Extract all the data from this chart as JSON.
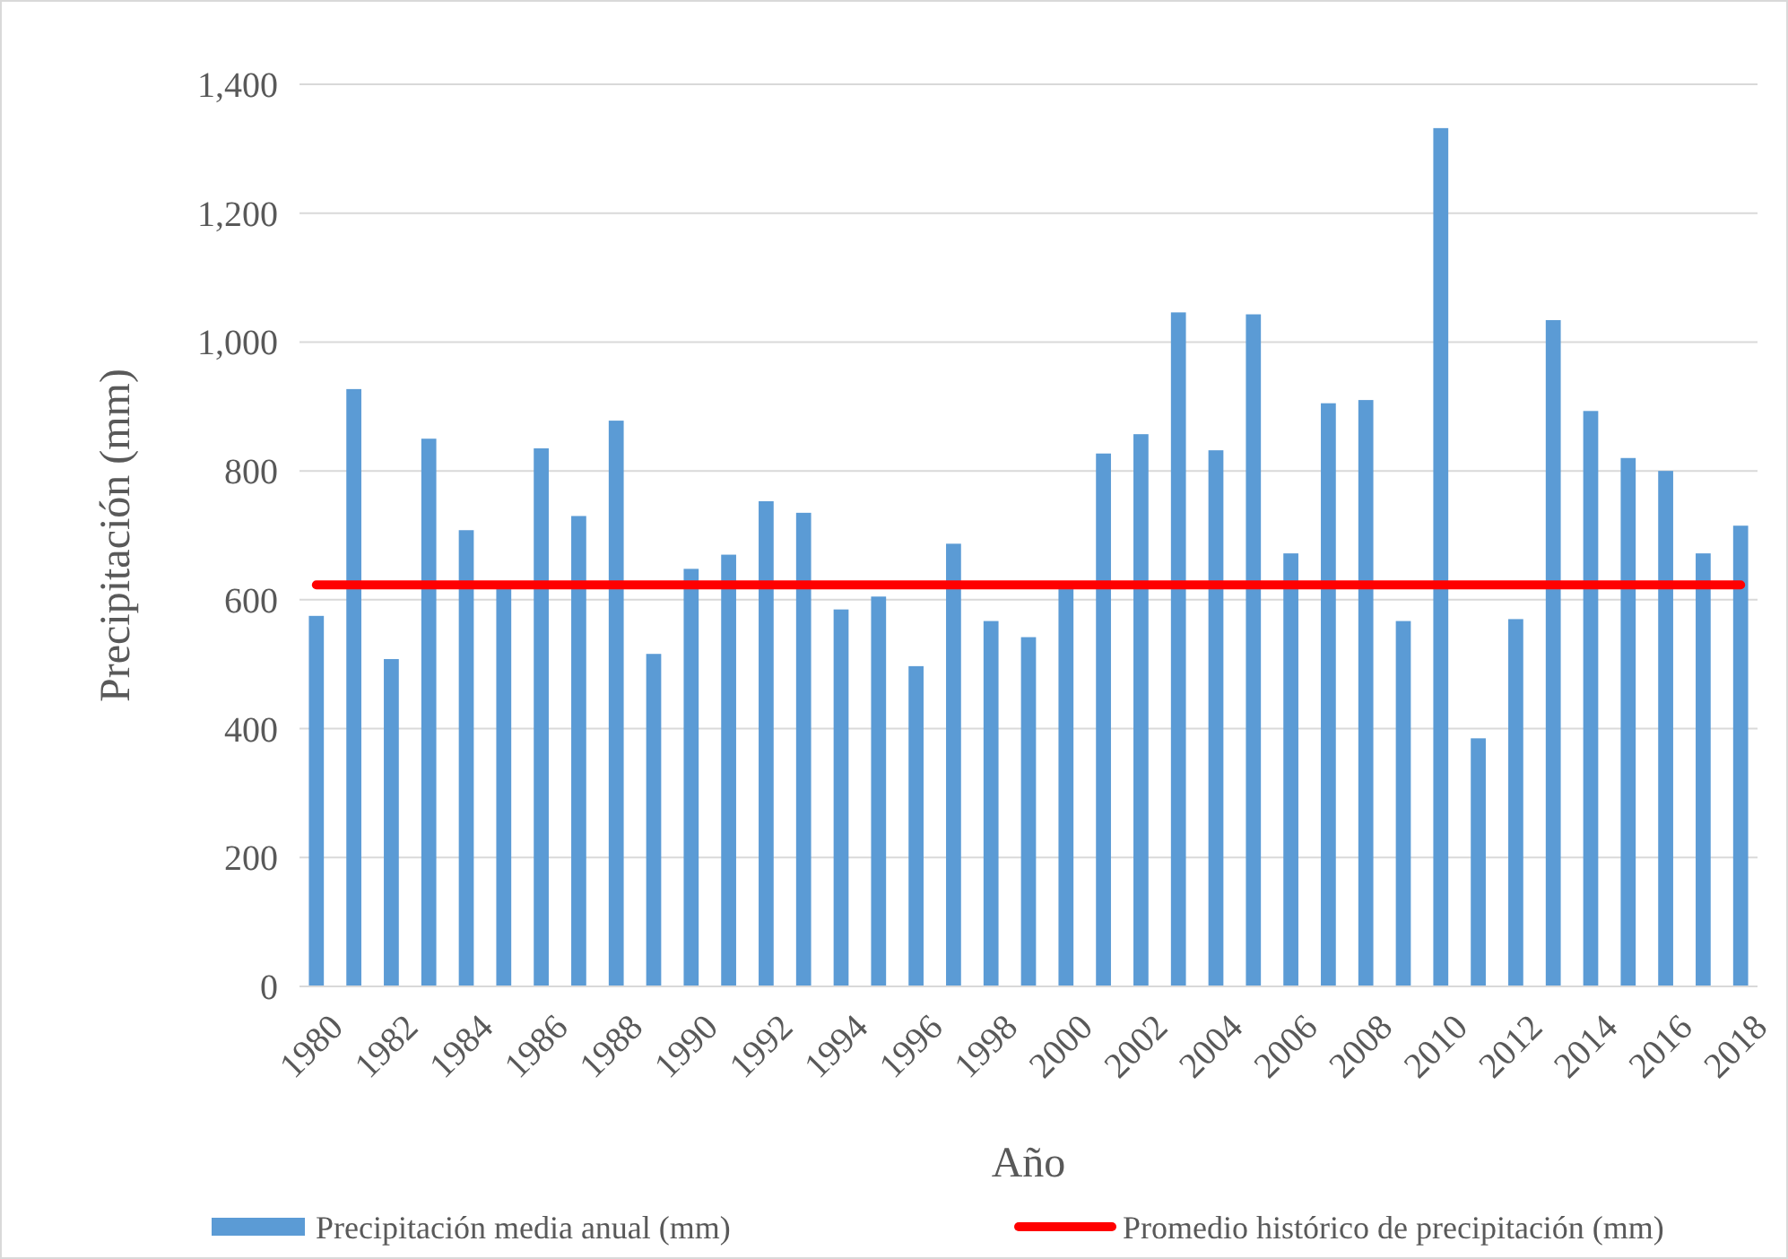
{
  "chart_data": {
    "type": "bar",
    "xlabel": "Año",
    "ylabel": "Precipitación (mm)",
    "categories": [
      "1980",
      null,
      "1982",
      null,
      "1984",
      null,
      "1986",
      null,
      "1988",
      null,
      "1990",
      null,
      "1992",
      null,
      "1994",
      null,
      "1996",
      null,
      "1998",
      null,
      "2000",
      null,
      "2002",
      null,
      "2004",
      null,
      "2006",
      null,
      "2008",
      null,
      "2010",
      null,
      "2012",
      null,
      "2014",
      null,
      "2016",
      null,
      "2018"
    ],
    "series": [
      {
        "name": "Precipitación media anual (mm)",
        "color": "#5b9bd5",
        "values": [
          575,
          927,
          508,
          850,
          708,
          618,
          835,
          730,
          878,
          516,
          648,
          670,
          753,
          735,
          585,
          605,
          497,
          687,
          567,
          542,
          618,
          827,
          857,
          1046,
          832,
          1043,
          672,
          905,
          910,
          567,
          1332,
          385,
          570,
          1034,
          893,
          820,
          800,
          672,
          715
        ]
      },
      {
        "name": "Promedio histórico de precipitación (mm)",
        "type": "line",
        "color": "#ff0000",
        "values": [
          623,
          623,
          623,
          623,
          623,
          623,
          623,
          623,
          623,
          623,
          623,
          623,
          623,
          623,
          623,
          623,
          623,
          623,
          623,
          623,
          623,
          623,
          623,
          623,
          623,
          623,
          623,
          623,
          623,
          623,
          623,
          623,
          623,
          623,
          623,
          623,
          623,
          623,
          623
        ]
      }
    ],
    "ylim": [
      0,
      1400
    ],
    "yticks": [
      {
        "value": 0,
        "label": "0"
      },
      {
        "value": 200,
        "label": "200"
      },
      {
        "value": 400,
        "label": "400"
      },
      {
        "value": 600,
        "label": "600"
      },
      {
        "value": 800,
        "label": "800"
      },
      {
        "value": 1000,
        "label": "1,000"
      },
      {
        "value": 1200,
        "label": "1,200"
      },
      {
        "value": 1400,
        "label": "1,400"
      }
    ],
    "grid": "y",
    "legend": "bottom",
    "marker": "none",
    "line_style": "solid"
  }
}
